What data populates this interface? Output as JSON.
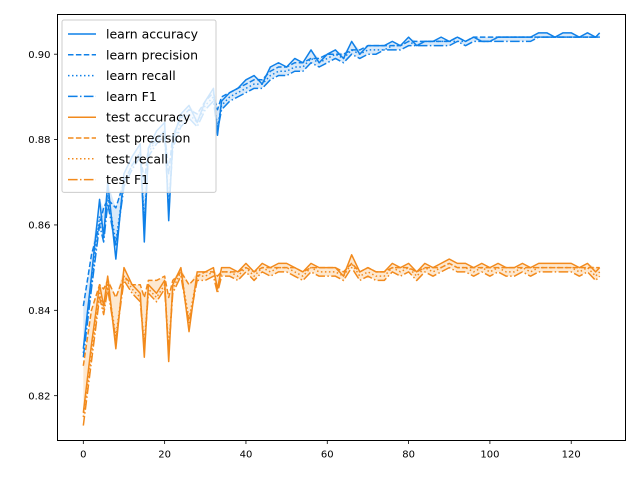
{
  "chart_data": {
    "type": "line",
    "title": "",
    "xlabel": "",
    "ylabel": "",
    "xlim": [
      -6.35,
      133.35
    ],
    "ylim": [
      0.8095,
      0.9093
    ],
    "xticks": [
      0,
      20,
      40,
      60,
      80,
      100,
      120
    ],
    "yticks": [
      0.82,
      0.84,
      0.86,
      0.88,
      0.9
    ],
    "ytick_labels": [
      "0.82",
      "0.84",
      "0.86",
      "0.88",
      "0.90"
    ],
    "legend_position": "upper-left",
    "colors": {
      "learn": "#0f80e8",
      "test": "#f28a1c",
      "fill_learn": "#cfe4f7",
      "fill_test": "#fde2c4"
    },
    "x": [
      0,
      2,
      4,
      5,
      6,
      8,
      10,
      12,
      14,
      15,
      16,
      18,
      20,
      21,
      22,
      24,
      26,
      28,
      30,
      32,
      33,
      34,
      36,
      38,
      40,
      42,
      44,
      46,
      48,
      50,
      52,
      54,
      56,
      58,
      60,
      62,
      64,
      66,
      68,
      70,
      72,
      74,
      76,
      78,
      80,
      82,
      84,
      86,
      88,
      90,
      92,
      94,
      96,
      98,
      100,
      102,
      104,
      106,
      108,
      110,
      112,
      114,
      116,
      118,
      120,
      122,
      124,
      126,
      127
    ],
    "series": [
      {
        "name": "learn accuracy",
        "group": "learn",
        "dash": "solid",
        "values": [
          0.831,
          0.848,
          0.866,
          0.857,
          0.87,
          0.852,
          0.872,
          0.876,
          0.879,
          0.856,
          0.878,
          0.882,
          0.884,
          0.861,
          0.88,
          0.886,
          0.888,
          0.884,
          0.889,
          0.892,
          0.881,
          0.889,
          0.891,
          0.892,
          0.894,
          0.895,
          0.893,
          0.897,
          0.898,
          0.897,
          0.899,
          0.898,
          0.901,
          0.898,
          0.9,
          0.901,
          0.899,
          0.903,
          0.9,
          0.902,
          0.902,
          0.902,
          0.903,
          0.902,
          0.904,
          0.902,
          0.903,
          0.903,
          0.904,
          0.903,
          0.904,
          0.903,
          0.904,
          0.903,
          0.903,
          0.904,
          0.904,
          0.904,
          0.904,
          0.904,
          0.905,
          0.905,
          0.904,
          0.905,
          0.905,
          0.904,
          0.905,
          0.904,
          0.905
        ]
      },
      {
        "name": "learn precision",
        "group": "learn",
        "dash": "dashed",
        "values": [
          0.841,
          0.853,
          0.86,
          0.864,
          0.866,
          0.864,
          0.87,
          0.874,
          0.877,
          0.87,
          0.878,
          0.88,
          0.882,
          0.872,
          0.881,
          0.885,
          0.887,
          0.886,
          0.889,
          0.891,
          0.887,
          0.89,
          0.891,
          0.892,
          0.893,
          0.894,
          0.894,
          0.896,
          0.897,
          0.897,
          0.898,
          0.898,
          0.899,
          0.899,
          0.9,
          0.9,
          0.9,
          0.901,
          0.901,
          0.902,
          0.902,
          0.902,
          0.902,
          0.902,
          0.903,
          0.903,
          0.903,
          0.903,
          0.903,
          0.903,
          0.904,
          0.903,
          0.904,
          0.904,
          0.904,
          0.904,
          0.904,
          0.904,
          0.904,
          0.904,
          0.904,
          0.904,
          0.904,
          0.904,
          0.904,
          0.904,
          0.904,
          0.904,
          0.904
        ]
      },
      {
        "name": "learn recall",
        "group": "learn",
        "dash": "dotted",
        "values": [
          0.83,
          0.846,
          0.862,
          0.858,
          0.867,
          0.856,
          0.87,
          0.874,
          0.877,
          0.861,
          0.877,
          0.88,
          0.882,
          0.864,
          0.879,
          0.884,
          0.886,
          0.884,
          0.888,
          0.89,
          0.883,
          0.888,
          0.89,
          0.891,
          0.892,
          0.893,
          0.893,
          0.895,
          0.896,
          0.896,
          0.897,
          0.897,
          0.899,
          0.898,
          0.899,
          0.9,
          0.899,
          0.901,
          0.9,
          0.901,
          0.901,
          0.901,
          0.902,
          0.902,
          0.903,
          0.902,
          0.903,
          0.903,
          0.903,
          0.903,
          0.903,
          0.903,
          0.904,
          0.903,
          0.903,
          0.904,
          0.904,
          0.904,
          0.904,
          0.904,
          0.904,
          0.904,
          0.904,
          0.904,
          0.904,
          0.904,
          0.904,
          0.904,
          0.904
        ]
      },
      {
        "name": "learn F1",
        "group": "learn",
        "dash": "dashdot",
        "values": [
          0.829,
          0.845,
          0.86,
          0.856,
          0.865,
          0.855,
          0.869,
          0.873,
          0.876,
          0.86,
          0.876,
          0.879,
          0.881,
          0.863,
          0.878,
          0.883,
          0.885,
          0.883,
          0.887,
          0.889,
          0.882,
          0.887,
          0.889,
          0.89,
          0.891,
          0.892,
          0.892,
          0.894,
          0.895,
          0.895,
          0.896,
          0.896,
          0.898,
          0.897,
          0.898,
          0.899,
          0.898,
          0.9,
          0.899,
          0.9,
          0.9,
          0.901,
          0.901,
          0.901,
          0.902,
          0.902,
          0.902,
          0.902,
          0.902,
          0.902,
          0.903,
          0.902,
          0.903,
          0.903,
          0.903,
          0.903,
          0.903,
          0.903,
          0.903,
          0.903,
          0.904,
          0.904,
          0.904,
          0.904,
          0.904,
          0.904,
          0.904,
          0.904,
          0.904
        ]
      },
      {
        "name": "test accuracy",
        "group": "test",
        "dash": "solid",
        "values": [
          0.816,
          0.832,
          0.846,
          0.841,
          0.848,
          0.831,
          0.85,
          0.846,
          0.844,
          0.829,
          0.846,
          0.844,
          0.847,
          0.828,
          0.846,
          0.85,
          0.835,
          0.849,
          0.849,
          0.85,
          0.845,
          0.85,
          0.85,
          0.849,
          0.851,
          0.849,
          0.851,
          0.85,
          0.851,
          0.851,
          0.85,
          0.849,
          0.851,
          0.85,
          0.85,
          0.85,
          0.848,
          0.853,
          0.849,
          0.85,
          0.849,
          0.849,
          0.851,
          0.85,
          0.851,
          0.849,
          0.851,
          0.85,
          0.851,
          0.852,
          0.851,
          0.851,
          0.85,
          0.851,
          0.85,
          0.851,
          0.85,
          0.85,
          0.851,
          0.85,
          0.851,
          0.851,
          0.851,
          0.851,
          0.851,
          0.85,
          0.851,
          0.849,
          0.85
        ]
      },
      {
        "name": "test precision",
        "group": "test",
        "dash": "dashed",
        "values": [
          0.827,
          0.84,
          0.846,
          0.845,
          0.847,
          0.843,
          0.848,
          0.846,
          0.846,
          0.843,
          0.847,
          0.847,
          0.848,
          0.843,
          0.847,
          0.849,
          0.846,
          0.848,
          0.849,
          0.849,
          0.848,
          0.849,
          0.849,
          0.849,
          0.85,
          0.849,
          0.85,
          0.85,
          0.85,
          0.85,
          0.85,
          0.849,
          0.85,
          0.85,
          0.85,
          0.85,
          0.849,
          0.851,
          0.849,
          0.85,
          0.849,
          0.849,
          0.85,
          0.85,
          0.85,
          0.849,
          0.85,
          0.85,
          0.85,
          0.851,
          0.85,
          0.85,
          0.85,
          0.85,
          0.85,
          0.85,
          0.85,
          0.85,
          0.85,
          0.85,
          0.85,
          0.85,
          0.85,
          0.85,
          0.85,
          0.85,
          0.85,
          0.85,
          0.85
        ]
      },
      {
        "name": "test recall",
        "group": "test",
        "dash": "dotted",
        "values": [
          0.815,
          0.83,
          0.844,
          0.84,
          0.846,
          0.834,
          0.848,
          0.845,
          0.843,
          0.832,
          0.845,
          0.843,
          0.846,
          0.831,
          0.845,
          0.849,
          0.838,
          0.848,
          0.848,
          0.849,
          0.845,
          0.849,
          0.849,
          0.848,
          0.85,
          0.848,
          0.85,
          0.849,
          0.85,
          0.85,
          0.849,
          0.848,
          0.85,
          0.849,
          0.849,
          0.849,
          0.848,
          0.851,
          0.848,
          0.849,
          0.848,
          0.848,
          0.85,
          0.849,
          0.85,
          0.848,
          0.85,
          0.849,
          0.85,
          0.851,
          0.85,
          0.85,
          0.849,
          0.85,
          0.849,
          0.85,
          0.849,
          0.849,
          0.85,
          0.849,
          0.85,
          0.85,
          0.85,
          0.85,
          0.85,
          0.849,
          0.85,
          0.848,
          0.849
        ]
      },
      {
        "name": "test F1",
        "group": "test",
        "dash": "dashdot",
        "values": [
          0.813,
          0.828,
          0.843,
          0.839,
          0.845,
          0.833,
          0.847,
          0.844,
          0.842,
          0.831,
          0.844,
          0.842,
          0.845,
          0.83,
          0.844,
          0.848,
          0.837,
          0.847,
          0.847,
          0.848,
          0.844,
          0.848,
          0.848,
          0.847,
          0.849,
          0.847,
          0.849,
          0.848,
          0.849,
          0.849,
          0.848,
          0.847,
          0.849,
          0.848,
          0.848,
          0.848,
          0.847,
          0.85,
          0.847,
          0.848,
          0.847,
          0.847,
          0.849,
          0.848,
          0.849,
          0.847,
          0.849,
          0.848,
          0.849,
          0.85,
          0.849,
          0.849,
          0.848,
          0.849,
          0.848,
          0.849,
          0.848,
          0.848,
          0.849,
          0.848,
          0.849,
          0.849,
          0.849,
          0.849,
          0.849,
          0.848,
          0.849,
          0.847,
          0.848
        ]
      }
    ]
  }
}
